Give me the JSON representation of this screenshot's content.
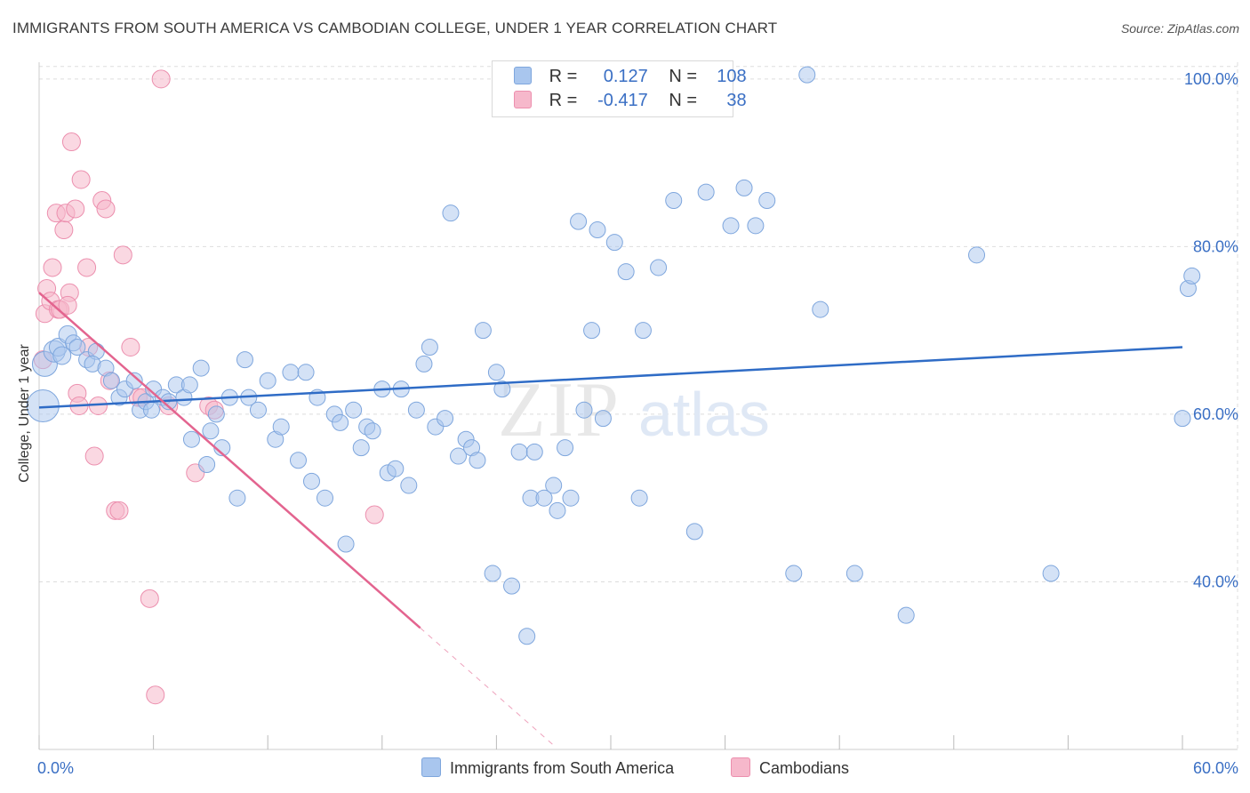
{
  "title": "IMMIGRANTS FROM SOUTH AMERICA VS CAMBODIAN COLLEGE, UNDER 1 YEAR CORRELATION CHART",
  "source": "Source: ZipAtlas.com",
  "watermark": "ZIPatlas",
  "legend_box": {
    "rows": [
      {
        "r_label": "R =",
        "r_value": "0.127",
        "n_label": "N =",
        "n_value": "108"
      },
      {
        "r_label": "R =",
        "r_value": "-0.417",
        "n_label": "N =",
        "n_value": "38"
      }
    ]
  },
  "bottom_legend": {
    "series1": "Immigrants from South America",
    "series2": "Cambodians"
  },
  "colors": {
    "blue_fill": "#a9c6ee",
    "blue_stroke": "#7ea6dd",
    "blue_line": "#2f6cc6",
    "pink_fill": "#f6b8cb",
    "pink_stroke": "#ec8fae",
    "pink_line": "#e3648f",
    "axis_label": "#3a6fc4",
    "grid": "#dddddd"
  },
  "chart_data": {
    "type": "scatter",
    "title": "IMMIGRANTS FROM SOUTH AMERICA VS CAMBODIAN COLLEGE, UNDER 1 YEAR CORRELATION CHART",
    "xlabel": "",
    "ylabel": "College, Under 1 year",
    "xlim": [
      0,
      60
    ],
    "ylim": [
      20,
      102
    ],
    "x_tick_labels": [
      "0.0%",
      "60.0%"
    ],
    "y_tick_labels": [
      "40.0%",
      "60.0%",
      "80.0%",
      "100.0%"
    ],
    "y_ticks": [
      40,
      60,
      80,
      100
    ],
    "series": [
      {
        "name": "Immigrants from South America",
        "R": 0.127,
        "N": 108,
        "trend": {
          "x0": 0,
          "y0": 60.8,
          "x1": 60,
          "y1": 68.0
        },
        "points": [
          [
            0.2,
            61.0,
            18
          ],
          [
            0.3,
            66.0,
            14
          ],
          [
            0.8,
            67.5,
            12
          ],
          [
            1.0,
            68.0,
            10
          ],
          [
            1.2,
            67.0,
            10
          ],
          [
            1.5,
            69.5,
            10
          ],
          [
            1.8,
            68.5,
            9
          ],
          [
            2.0,
            68.0,
            9
          ],
          [
            2.5,
            66.5,
            9
          ],
          [
            3.0,
            67.5,
            9
          ],
          [
            2.8,
            66.0,
            9
          ],
          [
            3.5,
            65.5,
            9
          ],
          [
            3.8,
            64.0,
            9
          ],
          [
            4.2,
            62.0,
            9
          ],
          [
            4.5,
            63.0,
            9
          ],
          [
            5.0,
            64.0,
            9
          ],
          [
            5.3,
            60.5,
            9
          ],
          [
            5.6,
            61.5,
            9
          ],
          [
            5.9,
            60.5,
            9
          ],
          [
            6.0,
            63.0,
            9
          ],
          [
            6.5,
            62.0,
            9
          ],
          [
            6.8,
            61.5,
            9
          ],
          [
            7.2,
            63.5,
            9
          ],
          [
            7.6,
            62.0,
            9
          ],
          [
            7.9,
            63.5,
            9
          ],
          [
            8.5,
            65.5,
            9
          ],
          [
            8.0,
            57.0,
            9
          ],
          [
            8.8,
            54.0,
            9
          ],
          [
            9.0,
            58.0,
            9
          ],
          [
            9.3,
            60.0,
            9
          ],
          [
            9.6,
            56.0,
            9
          ],
          [
            10.0,
            62.0,
            9
          ],
          [
            10.4,
            50.0,
            9
          ],
          [
            10.8,
            66.5,
            9
          ],
          [
            11.0,
            62.0,
            9
          ],
          [
            11.5,
            60.5,
            9
          ],
          [
            12.0,
            64.0,
            9
          ],
          [
            12.4,
            57.0,
            9
          ],
          [
            12.7,
            58.5,
            9
          ],
          [
            13.2,
            65.0,
            9
          ],
          [
            13.6,
            54.5,
            9
          ],
          [
            14.0,
            65.0,
            9
          ],
          [
            14.3,
            52.0,
            9
          ],
          [
            14.6,
            62.0,
            9
          ],
          [
            15.0,
            50.0,
            9
          ],
          [
            15.5,
            60.0,
            9
          ],
          [
            15.8,
            59.0,
            9
          ],
          [
            16.1,
            44.5,
            9
          ],
          [
            16.5,
            60.5,
            9
          ],
          [
            16.9,
            56.0,
            9
          ],
          [
            17.2,
            58.5,
            9
          ],
          [
            17.5,
            58.0,
            9
          ],
          [
            18.0,
            63.0,
            9
          ],
          [
            18.3,
            53.0,
            9
          ],
          [
            18.7,
            53.5,
            9
          ],
          [
            19.0,
            63.0,
            9
          ],
          [
            19.4,
            51.5,
            9
          ],
          [
            19.8,
            60.5,
            9
          ],
          [
            20.2,
            66.0,
            9
          ],
          [
            20.5,
            68.0,
            9
          ],
          [
            20.8,
            58.5,
            9
          ],
          [
            21.3,
            59.5,
            9
          ],
          [
            21.6,
            84.0,
            9
          ],
          [
            22.0,
            55.0,
            9
          ],
          [
            22.4,
            57.0,
            9
          ],
          [
            22.7,
            56.0,
            9
          ],
          [
            23.0,
            54.5,
            9
          ],
          [
            23.3,
            70.0,
            9
          ],
          [
            23.8,
            41.0,
            9
          ],
          [
            24.0,
            65.0,
            9
          ],
          [
            24.3,
            63.0,
            9
          ],
          [
            24.8,
            39.5,
            9
          ],
          [
            25.2,
            55.5,
            9
          ],
          [
            25.6,
            33.5,
            9
          ],
          [
            25.8,
            50.0,
            9
          ],
          [
            26.0,
            55.5,
            9
          ],
          [
            26.5,
            50.0,
            9
          ],
          [
            27.0,
            51.5,
            9
          ],
          [
            27.2,
            48.5,
            9
          ],
          [
            27.6,
            56.0,
            9
          ],
          [
            27.9,
            50.0,
            9
          ],
          [
            28.3,
            83.0,
            9
          ],
          [
            28.6,
            60.5,
            9
          ],
          [
            29.0,
            70.0,
            9
          ],
          [
            29.3,
            82.0,
            9
          ],
          [
            29.6,
            59.5,
            9
          ],
          [
            30.2,
            80.5,
            9
          ],
          [
            30.8,
            77.0,
            9
          ],
          [
            31.5,
            50.0,
            9
          ],
          [
            31.7,
            70.0,
            9
          ],
          [
            32.5,
            77.5,
            9
          ],
          [
            33.3,
            85.5,
            9
          ],
          [
            34.4,
            46.0,
            9
          ],
          [
            35.0,
            86.5,
            9
          ],
          [
            36.3,
            82.5,
            9
          ],
          [
            37.0,
            87.0,
            9
          ],
          [
            37.6,
            82.5,
            9
          ],
          [
            38.2,
            85.5,
            9
          ],
          [
            39.6,
            41.0,
            9
          ],
          [
            40.3,
            100.5,
            9
          ],
          [
            41.0,
            72.5,
            9
          ],
          [
            42.8,
            41.0,
            9
          ],
          [
            45.5,
            36.0,
            9
          ],
          [
            49.2,
            79.0,
            9
          ],
          [
            53.1,
            41.0,
            9
          ],
          [
            60.0,
            59.5,
            9
          ],
          [
            60.3,
            75.0,
            9
          ],
          [
            60.5,
            76.5,
            9
          ]
        ]
      },
      {
        "name": "Cambodians",
        "R": -0.417,
        "N": 38,
        "trend": {
          "x0": 0,
          "y0": 74.5,
          "x1": 20,
          "y1": 34.5,
          "dash_x1": 27,
          "dash_y1": 20.5
        },
        "points": [
          [
            0.2,
            66.5,
            10
          ],
          [
            0.3,
            72.0,
            10
          ],
          [
            0.4,
            75.0,
            10
          ],
          [
            0.6,
            73.5,
            10
          ],
          [
            0.7,
            77.5,
            10
          ],
          [
            0.9,
            84.0,
            10
          ],
          [
            1.0,
            72.5,
            10
          ],
          [
            1.1,
            72.5,
            10
          ],
          [
            1.3,
            82.0,
            10
          ],
          [
            1.4,
            84.0,
            10
          ],
          [
            1.6,
            74.5,
            10
          ],
          [
            1.7,
            92.5,
            10
          ],
          [
            1.9,
            84.5,
            10
          ],
          [
            2.0,
            62.5,
            10
          ],
          [
            2.1,
            61.0,
            10
          ],
          [
            2.2,
            88.0,
            10
          ],
          [
            2.5,
            77.5,
            10
          ],
          [
            2.6,
            68.0,
            10
          ],
          [
            2.9,
            55.0,
            10
          ],
          [
            3.1,
            61.0,
            10
          ],
          [
            3.3,
            85.5,
            10
          ],
          [
            3.5,
            84.5,
            10
          ],
          [
            3.7,
            64.0,
            10
          ],
          [
            4.0,
            48.5,
            10
          ],
          [
            4.2,
            48.5,
            10
          ],
          [
            4.4,
            79.0,
            10
          ],
          [
            4.8,
            68.0,
            10
          ],
          [
            5.2,
            62.0,
            10
          ],
          [
            5.4,
            62.0,
            10
          ],
          [
            5.8,
            38.0,
            10
          ],
          [
            6.1,
            26.5,
            10
          ],
          [
            6.4,
            100.0,
            10
          ],
          [
            6.8,
            61.0,
            10
          ],
          [
            8.2,
            53.0,
            10
          ],
          [
            8.9,
            61.0,
            10
          ],
          [
            9.2,
            60.5,
            10
          ],
          [
            17.6,
            48.0,
            10
          ],
          [
            1.5,
            73.0,
            10
          ]
        ]
      }
    ]
  }
}
